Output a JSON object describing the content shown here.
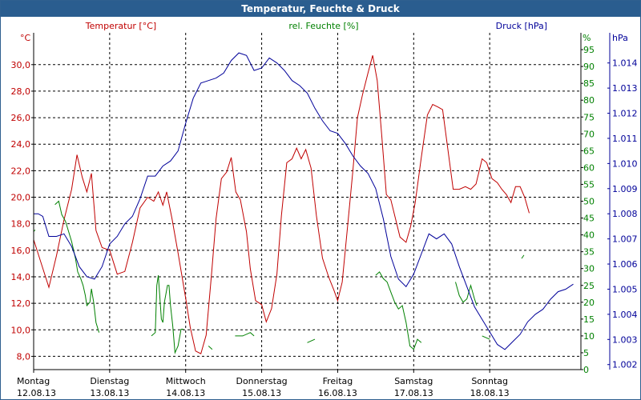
{
  "window": {
    "title": "Temperatur, Feuchte & Druck"
  },
  "chart_data": {
    "type": "line",
    "title": "Temperatur, Feuchte & Druck",
    "x_ticks": [
      {
        "x": 0,
        "day": "Montag",
        "date": "12.08.13"
      },
      {
        "x": 1,
        "day": "Dienstag",
        "date": "13.08.13"
      },
      {
        "x": 2,
        "day": "Mittwoch",
        "date": "14.08.13"
      },
      {
        "x": 3,
        "day": "Donnerstag",
        "date": "15.08.13"
      },
      {
        "x": 4,
        "day": "Freitag",
        "date": "16.08.13"
      },
      {
        "x": 5,
        "day": "Samstag",
        "date": "17.08.13"
      },
      {
        "x": 6,
        "day": "Sonntag",
        "date": "18.08.13"
      }
    ],
    "xlim": [
      0,
      7.2
    ],
    "axes": {
      "temperature": {
        "label": "Temperatur [°C]",
        "unit": "°C",
        "color": "#c00000",
        "ylim": [
          7.0,
          32.4
        ],
        "ticks": [
          "8,0",
          "10,0",
          "12,0",
          "14,0",
          "16,0",
          "18,0",
          "20,0",
          "22,0",
          "24,0",
          "26,0",
          "28,0",
          "30,0"
        ],
        "tick_values": [
          8,
          10,
          12,
          14,
          16,
          18,
          20,
          22,
          24,
          26,
          28,
          30
        ]
      },
      "humidity": {
        "label": "rel. Feuchte [%]",
        "unit": "%",
        "color": "#008000",
        "ylim": [
          0,
          100
        ],
        "ticks": [
          "0",
          "5",
          "10",
          "15",
          "20",
          "25",
          "30",
          "35",
          "40",
          "45",
          "50",
          "55",
          "60",
          "65",
          "70",
          "75",
          "80",
          "85",
          "90",
          "95"
        ],
        "tick_values": [
          0,
          5,
          10,
          15,
          20,
          25,
          30,
          35,
          40,
          45,
          50,
          55,
          60,
          65,
          70,
          75,
          80,
          85,
          90,
          95
        ]
      },
      "pressure": {
        "label": "Druck [hPa]",
        "unit": "hPa",
        "color": "#000099",
        "ylim": [
          1001.8,
          1015.2
        ],
        "ticks": [
          "1.002",
          "1.003",
          "1.004",
          "1.005",
          "1.006",
          "1.007",
          "1.008",
          "1.009",
          "1.010",
          "1.011",
          "1.012",
          "1.013",
          "1.014"
        ],
        "tick_values": [
          1002,
          1003,
          1004,
          1005,
          1006,
          1007,
          1008,
          1009,
          1010,
          1011,
          1012,
          1013,
          1014
        ]
      }
    },
    "grid_values": [
      8,
      10,
      12,
      14,
      16,
      18,
      20,
      22,
      24,
      26,
      28,
      30
    ],
    "series": [
      {
        "name": "Temperatur",
        "axis": "temperature",
        "color": "#c00000",
        "points": [
          [
            0,
            16.8
          ],
          [
            0.1,
            15.0
          ],
          [
            0.2,
            13.2
          ],
          [
            0.3,
            15.6
          ],
          [
            0.4,
            18.3
          ],
          [
            0.5,
            20.6
          ],
          [
            0.57,
            23.2
          ],
          [
            0.64,
            21.5
          ],
          [
            0.7,
            20.4
          ],
          [
            0.76,
            21.8
          ],
          [
            0.82,
            17.5
          ],
          [
            0.9,
            16.2
          ],
          [
            1.0,
            16.0
          ],
          [
            1.1,
            14.2
          ],
          [
            1.2,
            14.4
          ],
          [
            1.3,
            16.6
          ],
          [
            1.4,
            19.2
          ],
          [
            1.5,
            20.0
          ],
          [
            1.58,
            19.7
          ],
          [
            1.64,
            20.4
          ],
          [
            1.7,
            19.4
          ],
          [
            1.75,
            20.4
          ],
          [
            1.82,
            18.4
          ],
          [
            1.9,
            15.8
          ],
          [
            2.0,
            12.4
          ],
          [
            2.06,
            10.2
          ],
          [
            2.13,
            8.4
          ],
          [
            2.2,
            8.2
          ],
          [
            2.27,
            9.6
          ],
          [
            2.34,
            14.2
          ],
          [
            2.4,
            18.4
          ],
          [
            2.47,
            21.4
          ],
          [
            2.54,
            21.9
          ],
          [
            2.6,
            23.0
          ],
          [
            2.66,
            20.4
          ],
          [
            2.72,
            19.8
          ],
          [
            2.8,
            17.4
          ],
          [
            2.85,
            14.6
          ],
          [
            2.92,
            12.2
          ],
          [
            3.0,
            11.9
          ],
          [
            3.06,
            10.6
          ],
          [
            3.13,
            11.6
          ],
          [
            3.2,
            14.2
          ],
          [
            3.26,
            18.6
          ],
          [
            3.33,
            22.6
          ],
          [
            3.4,
            22.9
          ],
          [
            3.46,
            23.7
          ],
          [
            3.52,
            22.9
          ],
          [
            3.58,
            23.6
          ],
          [
            3.65,
            22.2
          ],
          [
            3.72,
            18.6
          ],
          [
            3.8,
            15.4
          ],
          [
            3.88,
            14.0
          ],
          [
            3.95,
            13.0
          ],
          [
            4.0,
            12.2
          ],
          [
            4.06,
            13.6
          ],
          [
            4.13,
            17.8
          ],
          [
            4.2,
            22.0
          ],
          [
            4.26,
            26.0
          ],
          [
            4.33,
            27.8
          ],
          [
            4.4,
            29.4
          ],
          [
            4.46,
            30.7
          ],
          [
            4.52,
            28.8
          ],
          [
            4.58,
            24.6
          ],
          [
            4.64,
            20.2
          ],
          [
            4.7,
            19.8
          ],
          [
            4.76,
            18.4
          ],
          [
            4.82,
            17.0
          ],
          [
            4.9,
            16.6
          ],
          [
            4.96,
            17.8
          ],
          [
            5.02,
            19.6
          ],
          [
            5.1,
            23.0
          ],
          [
            5.18,
            26.2
          ],
          [
            5.25,
            27.0
          ],
          [
            5.32,
            26.8
          ],
          [
            5.38,
            26.6
          ],
          [
            5.45,
            23.6
          ],
          [
            5.52,
            20.6
          ],
          [
            5.6,
            20.6
          ],
          [
            5.68,
            20.8
          ],
          [
            5.75,
            20.6
          ],
          [
            5.82,
            21.0
          ],
          [
            5.9,
            22.9
          ],
          [
            5.96,
            22.6
          ],
          [
            6.03,
            21.4
          ],
          [
            6.1,
            21.1
          ],
          [
            6.16,
            20.6
          ],
          [
            6.22,
            20.2
          ],
          [
            6.28,
            19.6
          ],
          [
            6.34,
            20.8
          ],
          [
            6.4,
            20.8
          ],
          [
            6.46,
            20.0
          ],
          [
            6.52,
            18.8
          ]
        ]
      },
      {
        "name": "rel. Feuchte",
        "axis": "humidity",
        "color": "#008000",
        "points": [
          [
            0,
            41
          ],
          [
            0.02,
            41.5
          ]
        ],
        "segments": [
          [
            [
              0.28,
              49
            ],
            [
              0.33,
              50
            ],
            [
              0.37,
              46
            ],
            [
              0.42,
              44
            ],
            [
              0.46,
              41
            ],
            [
              0.5,
              38
            ],
            [
              0.55,
              33
            ],
            [
              0.58,
              29
            ],
            [
              0.62,
              27
            ],
            [
              0.65,
              25
            ],
            [
              0.68,
              22
            ],
            [
              0.7,
              19
            ],
            [
              0.74,
              20
            ],
            [
              0.76,
              24
            ],
            [
              0.79,
              20
            ],
            [
              0.82,
              14
            ],
            [
              0.86,
              11
            ]
          ],
          [
            [
              1.55,
              10
            ],
            [
              1.6,
              11
            ],
            [
              1.62,
              25
            ],
            [
              1.64,
              28
            ],
            [
              1.68,
              15
            ],
            [
              1.7,
              14
            ],
            [
              1.72,
              20
            ],
            [
              1.76,
              25
            ],
            [
              1.78,
              25
            ],
            [
              1.8,
              19
            ],
            [
              1.83,
              13
            ],
            [
              1.86,
              5
            ],
            [
              1.9,
              7
            ],
            [
              1.94,
              12
            ],
            [
              1.97,
              12
            ]
          ],
          [
            [
              2.3,
              7
            ],
            [
              2.35,
              6
            ]
          ],
          [
            [
              2.65,
              10
            ],
            [
              2.75,
              10
            ],
            [
              2.85,
              11
            ],
            [
              2.9,
              10
            ]
          ],
          [
            [
              3.6,
              8
            ],
            [
              3.7,
              9
            ]
          ],
          [
            [
              4.5,
              28
            ],
            [
              4.55,
              29
            ],
            [
              4.6,
              27
            ],
            [
              4.65,
              26
            ],
            [
              4.7,
              23
            ],
            [
              4.75,
              20
            ],
            [
              4.8,
              18
            ],
            [
              4.85,
              19
            ],
            [
              4.9,
              14
            ],
            [
              4.95,
              7
            ],
            [
              5.0,
              6
            ],
            [
              5.05,
              9
            ],
            [
              5.1,
              8
            ]
          ],
          [
            [
              5.55,
              26
            ],
            [
              5.6,
              22
            ],
            [
              5.65,
              20
            ],
            [
              5.7,
              21
            ],
            [
              5.75,
              25
            ],
            [
              5.8,
              21
            ],
            [
              5.83,
              19
            ]
          ],
          [
            [
              5.9,
              10
            ],
            [
              6.0,
              9
            ]
          ],
          [
            [
              6.42,
              33
            ],
            [
              6.45,
              34
            ]
          ]
        ]
      },
      {
        "name": "Druck",
        "axis": "pressure",
        "color": "#000099",
        "points": [
          [
            0,
            1008.0
          ],
          [
            0.06,
            1008.0
          ],
          [
            0.12,
            1007.9
          ],
          [
            0.2,
            1007.1
          ],
          [
            0.3,
            1007.1
          ],
          [
            0.4,
            1007.2
          ],
          [
            0.5,
            1006.7
          ],
          [
            0.6,
            1005.9
          ],
          [
            0.7,
            1005.5
          ],
          [
            0.8,
            1005.4
          ],
          [
            0.9,
            1005.9
          ],
          [
            1.0,
            1006.8
          ],
          [
            1.1,
            1007.1
          ],
          [
            1.2,
            1007.6
          ],
          [
            1.3,
            1007.9
          ],
          [
            1.4,
            1008.6
          ],
          [
            1.5,
            1009.5
          ],
          [
            1.6,
            1009.5
          ],
          [
            1.7,
            1009.9
          ],
          [
            1.8,
            1010.1
          ],
          [
            1.9,
            1010.5
          ],
          [
            2.0,
            1011.6
          ],
          [
            2.1,
            1012.6
          ],
          [
            2.2,
            1013.2
          ],
          [
            2.3,
            1013.3
          ],
          [
            2.4,
            1013.4
          ],
          [
            2.5,
            1013.6
          ],
          [
            2.6,
            1014.1
          ],
          [
            2.7,
            1014.4
          ],
          [
            2.8,
            1014.3
          ],
          [
            2.9,
            1013.7
          ],
          [
            3.0,
            1013.8
          ],
          [
            3.1,
            1014.2
          ],
          [
            3.2,
            1014.0
          ],
          [
            3.3,
            1013.7
          ],
          [
            3.4,
            1013.3
          ],
          [
            3.5,
            1013.1
          ],
          [
            3.6,
            1012.8
          ],
          [
            3.7,
            1012.2
          ],
          [
            3.8,
            1011.7
          ],
          [
            3.9,
            1011.3
          ],
          [
            4.0,
            1011.2
          ],
          [
            4.1,
            1010.8
          ],
          [
            4.2,
            1010.3
          ],
          [
            4.3,
            1009.9
          ],
          [
            4.4,
            1009.6
          ],
          [
            4.5,
            1009.0
          ],
          [
            4.6,
            1007.8
          ],
          [
            4.7,
            1006.3
          ],
          [
            4.8,
            1005.4
          ],
          [
            4.9,
            1005.1
          ],
          [
            5.0,
            1005.6
          ],
          [
            5.1,
            1006.4
          ],
          [
            5.2,
            1007.2
          ],
          [
            5.3,
            1007.0
          ],
          [
            5.4,
            1007.2
          ],
          [
            5.5,
            1006.8
          ],
          [
            5.6,
            1005.9
          ],
          [
            5.7,
            1005.1
          ],
          [
            5.8,
            1004.3
          ],
          [
            5.9,
            1003.8
          ],
          [
            6.0,
            1003.3
          ],
          [
            6.1,
            1002.8
          ],
          [
            6.2,
            1002.6
          ],
          [
            6.3,
            1002.9
          ],
          [
            6.4,
            1003.2
          ],
          [
            6.5,
            1003.7
          ],
          [
            6.6,
            1004.0
          ],
          [
            6.7,
            1004.2
          ],
          [
            6.8,
            1004.6
          ],
          [
            6.9,
            1004.9
          ],
          [
            7.0,
            1005.0
          ],
          [
            7.1,
            1005.2
          ]
        ]
      }
    ]
  }
}
